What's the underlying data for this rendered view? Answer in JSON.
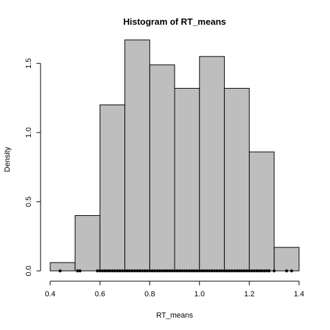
{
  "chart_data": {
    "type": "histogram",
    "title": "Histogram of RT_means",
    "xlabel": "RT_means",
    "ylabel": "Density",
    "xlim": [
      0.4,
      1.4
    ],
    "ylim": [
      0,
      1.7
    ],
    "xticks": [
      "0.4",
      "0.6",
      "0.8",
      "1.0",
      "1.2",
      "1.4"
    ],
    "yticks": [
      "0.0",
      "0.5",
      "1.0",
      "1.5"
    ],
    "grid": false,
    "bins": [
      {
        "start": 0.4,
        "end": 0.5,
        "density": 0.06
      },
      {
        "start": 0.5,
        "end": 0.6,
        "density": 0.4
      },
      {
        "start": 0.6,
        "end": 0.7,
        "density": 1.2
      },
      {
        "start": 0.7,
        "end": 0.8,
        "density": 1.67
      },
      {
        "start": 0.8,
        "end": 0.9,
        "density": 1.49
      },
      {
        "start": 0.9,
        "end": 1.0,
        "density": 1.32
      },
      {
        "start": 1.0,
        "end": 1.1,
        "density": 1.55
      },
      {
        "start": 1.1,
        "end": 1.2,
        "density": 1.32
      },
      {
        "start": 1.2,
        "end": 1.3,
        "density": 0.86
      },
      {
        "start": 1.3,
        "end": 1.4,
        "density": 0.17
      }
    ],
    "rug_points": [
      0.44,
      0.51,
      0.52,
      0.59,
      0.6,
      0.61,
      0.62,
      0.63,
      0.64,
      0.65,
      0.66,
      0.67,
      0.68,
      0.69,
      0.7,
      0.71,
      0.72,
      0.73,
      0.74,
      0.75,
      0.76,
      0.77,
      0.78,
      0.79,
      0.8,
      0.81,
      0.82,
      0.83,
      0.84,
      0.85,
      0.86,
      0.87,
      0.88,
      0.89,
      0.9,
      0.91,
      0.92,
      0.93,
      0.94,
      0.95,
      0.96,
      0.97,
      0.98,
      0.99,
      1.0,
      1.01,
      1.02,
      1.03,
      1.04,
      1.05,
      1.06,
      1.07,
      1.08,
      1.09,
      1.1,
      1.11,
      1.12,
      1.13,
      1.14,
      1.15,
      1.16,
      1.17,
      1.18,
      1.19,
      1.2,
      1.21,
      1.22,
      1.23,
      1.24,
      1.25,
      1.26,
      1.27,
      1.28,
      1.3,
      1.35,
      1.37
    ]
  }
}
